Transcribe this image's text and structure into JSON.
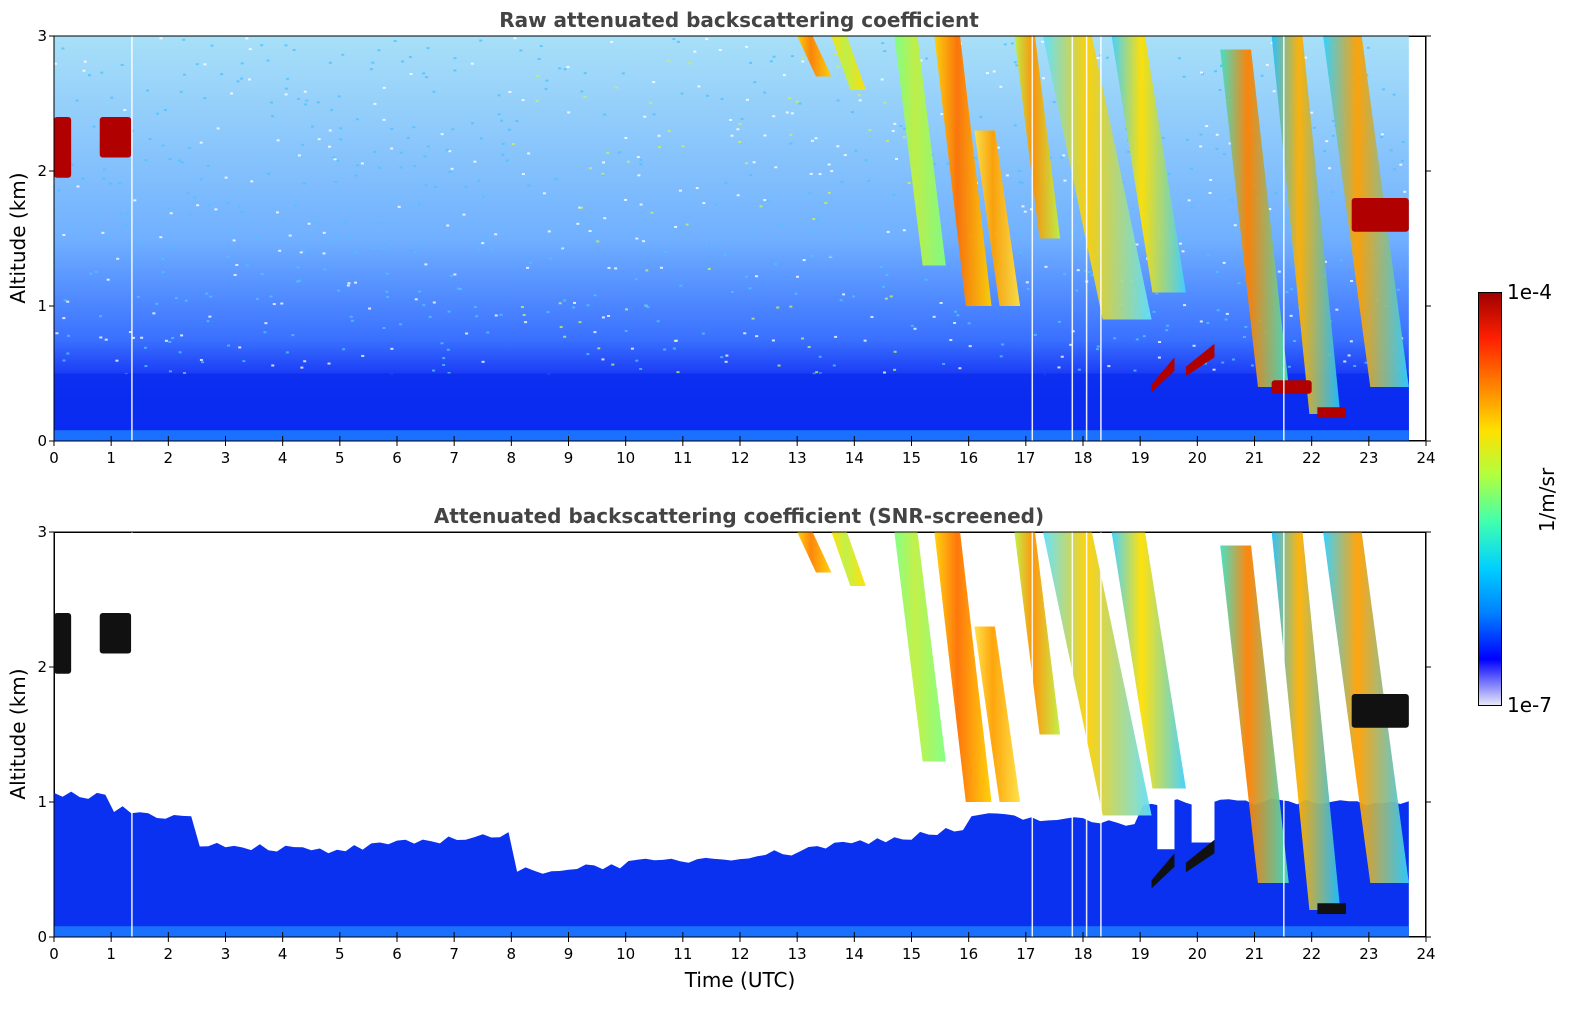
{
  "chart_data": [
    {
      "type": "heatmap",
      "title": "Raw attenuated backscattering coefficient",
      "xlabel": "",
      "ylabel": "Altitude (km)",
      "xlim": [
        0,
        24
      ],
      "ylim": [
        0,
        3
      ],
      "xticks": [
        "0",
        "1",
        "2",
        "3",
        "4",
        "5",
        "6",
        "7",
        "8",
        "9",
        "10",
        "11",
        "12",
        "13",
        "14",
        "15",
        "16",
        "17",
        "18",
        "19",
        "20",
        "21",
        "22",
        "23",
        "24"
      ],
      "yticks": [
        "0",
        "1",
        "2",
        "3"
      ],
      "screened": false,
      "features": [
        {
          "name": "boundary layer",
          "x": [
            0,
            23.7
          ],
          "y": [
            0,
            0.5
          ],
          "value": "low"
        },
        {
          "name": "noise region",
          "x": [
            0,
            23.7
          ],
          "y": [
            0.5,
            3.0
          ],
          "value": "noisy"
        },
        {
          "name": "cloud 0h",
          "x": [
            0,
            0.3
          ],
          "y": [
            1.95,
            2.4
          ],
          "value": "1e-4"
        },
        {
          "name": "cloud 1h",
          "x": [
            0.8,
            1.35
          ],
          "y": [
            2.1,
            2.4
          ],
          "value": "1e-4"
        },
        {
          "name": "cloud base 19-20h",
          "x": [
            19.2,
            20.3
          ],
          "y": [
            0.4,
            0.7
          ],
          "value": "1e-4"
        },
        {
          "name": "cloud 22.7-23.7h",
          "x": [
            22.7,
            23.7
          ],
          "y": [
            1.55,
            1.8
          ],
          "value": "1e-4"
        },
        {
          "name": "cloud 21.3-22h",
          "x": [
            21.3,
            22.0
          ],
          "y": [
            0.35,
            0.45
          ],
          "value": "1e-4"
        },
        {
          "name": "precipitation streaks",
          "x": [
            13.0,
            23.7
          ],
          "y": [
            0.2,
            3.0
          ],
          "value": "high"
        }
      ]
    },
    {
      "type": "heatmap",
      "title": "Attenuated backscattering coefficient (SNR-screened)",
      "xlabel": "Time (UTC)",
      "ylabel": "Altitude (km)",
      "xlim": [
        0,
        24
      ],
      "ylim": [
        0,
        3
      ],
      "xticks": [
        "0",
        "1",
        "2",
        "3",
        "4",
        "5",
        "6",
        "7",
        "8",
        "9",
        "10",
        "11",
        "12",
        "13",
        "14",
        "15",
        "16",
        "17",
        "18",
        "19",
        "20",
        "21",
        "22",
        "23",
        "24"
      ],
      "yticks": [
        "0",
        "1",
        "2",
        "3"
      ],
      "screened": true,
      "features": [
        {
          "name": "screened boundary layer",
          "x": [
            0,
            23.7
          ],
          "y": [
            0,
            1.1
          ],
          "value": "low"
        },
        {
          "name": "cloud 0h",
          "x": [
            0,
            0.3
          ],
          "y": [
            1.95,
            2.4
          ],
          "value": "1e-4"
        },
        {
          "name": "cloud 1h",
          "x": [
            0.8,
            1.35
          ],
          "y": [
            2.1,
            2.4
          ],
          "value": "1e-4"
        },
        {
          "name": "cloud base 19-20h",
          "x": [
            19.2,
            20.3
          ],
          "y": [
            0.4,
            0.7
          ],
          "value": "1e-4"
        },
        {
          "name": "cloud 22.7-23.7h",
          "x": [
            22.7,
            23.7
          ],
          "y": [
            1.55,
            1.8
          ],
          "value": "1e-4"
        },
        {
          "name": "precipitation streaks",
          "x": [
            13.0,
            23.7
          ],
          "y": [
            0.2,
            3.0
          ],
          "value": "high"
        }
      ]
    }
  ],
  "colorbar": {
    "max_label": "1e-4",
    "min_label": "1e-7",
    "unit": "1/m/sr",
    "colormap": "jet",
    "colors": [
      "#e8e8f8",
      "#0000ff",
      "#0080ff",
      "#00d0ff",
      "#40ffb0",
      "#b0ff40",
      "#ffe000",
      "#ff8000",
      "#ff2000",
      "#a00000"
    ]
  }
}
